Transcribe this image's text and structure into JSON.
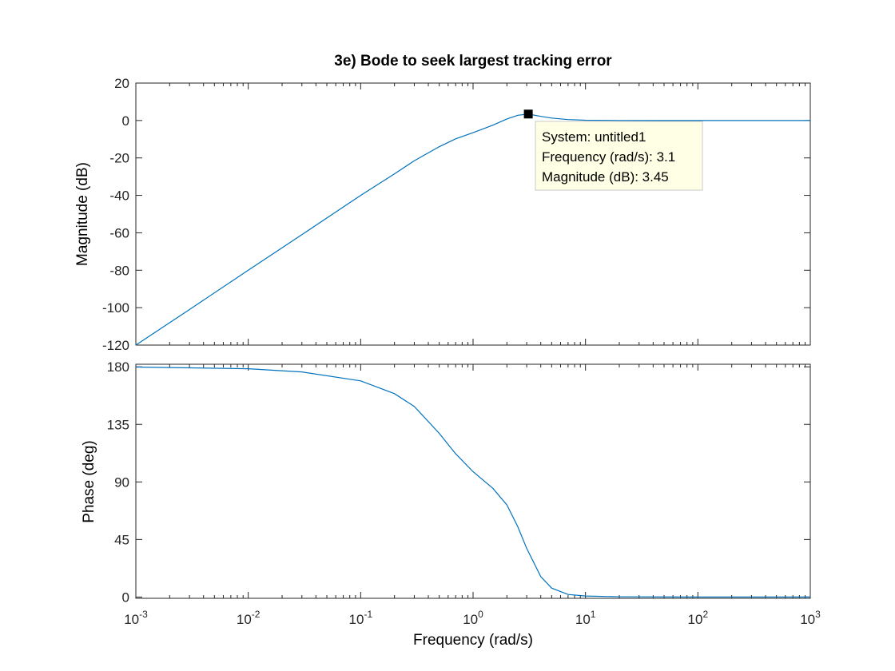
{
  "chart_data": {
    "type": "line",
    "title": "3e) Bode to seek largest tracking error",
    "xlabel": "Frequency  (rad/s)",
    "x_scale": "log",
    "xlim": [
      0.001,
      1000
    ],
    "x_ticks": [
      {
        "value": 0.001,
        "base": "10",
        "exp": "-3"
      },
      {
        "value": 0.01,
        "base": "10",
        "exp": "-2"
      },
      {
        "value": 0.1,
        "base": "10",
        "exp": "-1"
      },
      {
        "value": 1,
        "base": "10",
        "exp": "0"
      },
      {
        "value": 10,
        "base": "10",
        "exp": "1"
      },
      {
        "value": 100,
        "base": "10",
        "exp": "2"
      },
      {
        "value": 1000,
        "base": "10",
        "exp": "3"
      }
    ],
    "line_color": "#0072bd",
    "magnitude": {
      "ylabel": "Magnitude (dB)",
      "ylim": [
        -120,
        20
      ],
      "y_ticks": [
        20,
        0,
        -20,
        -40,
        -60,
        -80,
        -100,
        -120
      ],
      "series": [
        {
          "name": "untitled1",
          "x": [
            0.001,
            0.003,
            0.01,
            0.03,
            0.1,
            0.2,
            0.3,
            0.5,
            0.7,
            1.0,
            1.5,
            2.0,
            2.5,
            3.1,
            4.0,
            5.0,
            7.0,
            10,
            20,
            50,
            100,
            1000
          ],
          "y": [
            -120,
            -101,
            -80,
            -61,
            -40,
            -28.5,
            -21.5,
            -14,
            -9.8,
            -6.5,
            -2.5,
            0.8,
            2.8,
            3.45,
            2.2,
            1.3,
            0.5,
            0.15,
            0.03,
            0,
            0,
            0
          ]
        }
      ]
    },
    "phase": {
      "ylabel": "Phase (deg)",
      "ylim": [
        -1,
        182
      ],
      "y_ticks": [
        180,
        135,
        90,
        45,
        0
      ],
      "series": [
        {
          "name": "untitled1",
          "x": [
            0.001,
            0.01,
            0.03,
            0.1,
            0.2,
            0.3,
            0.5,
            0.7,
            1.0,
            1.5,
            2.0,
            2.5,
            3.0,
            4.0,
            5.0,
            7.0,
            10,
            20,
            100,
            1000
          ],
          "y": [
            179.8,
            178.5,
            176,
            169,
            159,
            149,
            128,
            112,
            98,
            85,
            72,
            55,
            38,
            16,
            7,
            2,
            0.8,
            0.2,
            0,
            0
          ]
        }
      ]
    },
    "datatip": {
      "marker_x": 3.1,
      "marker_y": 3.45,
      "lines": [
        "System: untitled1",
        "Frequency (rad/s): 3.1",
        "Magnitude (dB): 3.45"
      ]
    }
  }
}
